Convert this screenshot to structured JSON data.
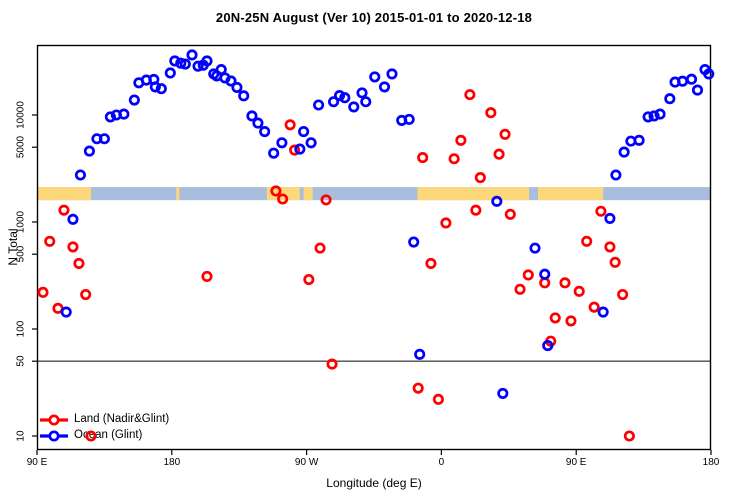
{
  "title": "20N-25N August (Ver 10)   2015-01-01 to 2020-12-18",
  "axes": {
    "xlabel": "Longitude (deg E)",
    "ylabel": "N Total",
    "x_ticks": [
      {
        "lon": 90,
        "label": "90 E"
      },
      {
        "lon": 180,
        "label": "180"
      },
      {
        "lon": 270,
        "label": "90 W"
      },
      {
        "lon": 360,
        "label": "0"
      },
      {
        "lon": 450,
        "label": "90 E"
      },
      {
        "lon": 540,
        "label": "180"
      }
    ],
    "y_ticks": [
      {
        "value": 10,
        "label": "10"
      },
      {
        "value": 50,
        "label": "50"
      },
      {
        "value": 100,
        "label": "100"
      },
      {
        "value": 500,
        "label": "500"
      },
      {
        "value": 1000,
        "label": "1000"
      },
      {
        "value": 5000,
        "label": "5000"
      },
      {
        "value": 10000,
        "label": "10000"
      }
    ]
  },
  "reference_line": {
    "value": 50,
    "color": "#4a4a4a"
  },
  "map_strip": {
    "ocean_color": "#a9bedd",
    "land_color": "#fdd87b",
    "value_range": [
      1600,
      2120
    ],
    "land_segments_lon": [
      [
        90,
        126
      ],
      [
        183,
        185
      ],
      [
        243.5,
        265.5
      ],
      [
        268,
        274
      ],
      [
        344,
        418.5
      ],
      [
        424.5,
        468
      ]
    ]
  },
  "chart_data": {
    "type": "scatter",
    "title": "20N-25N August (Ver 10)   2015-01-01 to 2020-12-18",
    "xlabel": "Longitude (deg E)",
    "ylabel": "N Total",
    "xlim": [
      90,
      540
    ],
    "ylim": [
      8,
      45000
    ],
    "y_scale": "log",
    "grid": false,
    "legend_position": "bottom-left",
    "series": [
      {
        "name": "Land (Nadir&Glint)",
        "color": "#ff0000",
        "points": [
          [
            259,
            8100
          ],
          [
            262,
            4700
          ],
          [
            379,
            15500
          ],
          [
            393,
            10500
          ],
          [
            373,
            5800
          ],
          [
            402.5,
            6600
          ],
          [
            347.5,
            4000
          ],
          [
            368.5,
            3900
          ],
          [
            398.5,
            4300
          ],
          [
            386,
            2600
          ],
          [
            249.5,
            1950
          ],
          [
            254,
            1640
          ],
          [
            283,
            1610
          ],
          [
            108,
            1290
          ],
          [
            98.5,
            660
          ],
          [
            114,
            585
          ],
          [
            118,
            410
          ],
          [
            94,
            220
          ],
          [
            122.5,
            210
          ],
          [
            104,
            156
          ],
          [
            203.5,
            310
          ],
          [
            279,
            570
          ],
          [
            271.5,
            290
          ],
          [
            383,
            1290
          ],
          [
            406,
            1180
          ],
          [
            363,
            980
          ],
          [
            353,
            410
          ],
          [
            466.5,
            1260
          ],
          [
            457,
            660
          ],
          [
            472.5,
            585
          ],
          [
            476,
            420
          ],
          [
            418,
            320
          ],
          [
            429,
            270
          ],
          [
            412.5,
            235
          ],
          [
            442.5,
            270
          ],
          [
            452,
            225
          ],
          [
            481,
            210
          ],
          [
            462,
            160
          ],
          [
            436,
            127
          ],
          [
            446.5,
            119
          ],
          [
            433,
            77
          ],
          [
            287,
            47
          ],
          [
            344.5,
            28
          ],
          [
            358,
            22
          ],
          [
            485.5,
            10
          ],
          [
            126,
            10
          ]
        ]
      },
      {
        "name": "Ocean (Glint)",
        "color": "#0000ff",
        "points": [
          [
            119,
            2750
          ],
          [
            125,
            4600
          ],
          [
            130,
            6000
          ],
          [
            135,
            6000
          ],
          [
            139,
            9600
          ],
          [
            143,
            10000
          ],
          [
            148,
            10200
          ],
          [
            155,
            13800
          ],
          [
            158,
            20000
          ],
          [
            163,
            21200
          ],
          [
            168,
            21500
          ],
          [
            169,
            18300
          ],
          [
            173,
            17600
          ],
          [
            179,
            24700
          ],
          [
            182,
            32000
          ],
          [
            186,
            30500
          ],
          [
            189,
            29900
          ],
          [
            193.5,
            36400
          ],
          [
            197.5,
            28600
          ],
          [
            201,
            29200
          ],
          [
            203.5,
            32000
          ],
          [
            208,
            24200
          ],
          [
            210,
            23200
          ],
          [
            213,
            26600
          ],
          [
            215.5,
            22200
          ],
          [
            219.5,
            20800
          ],
          [
            223.5,
            18100
          ],
          [
            228,
            15100
          ],
          [
            233.5,
            9800
          ],
          [
            237.5,
            8400
          ],
          [
            242,
            7000
          ],
          [
            248,
            4400
          ],
          [
            253.5,
            5500
          ],
          [
            265.5,
            4800
          ],
          [
            268,
            7000
          ],
          [
            273,
            5500
          ],
          [
            278,
            12400
          ],
          [
            288,
            13300
          ],
          [
            292,
            15200
          ],
          [
            295.5,
            14500
          ],
          [
            301.5,
            11900
          ],
          [
            307,
            16100
          ],
          [
            309.5,
            13300
          ],
          [
            315.5,
            22700
          ],
          [
            322,
            18300
          ],
          [
            327,
            24200
          ],
          [
            333.5,
            8900
          ],
          [
            338.5,
            9100
          ],
          [
            476.5,
            2750
          ],
          [
            482,
            4500
          ],
          [
            486.5,
            5700
          ],
          [
            492,
            5800
          ],
          [
            498,
            9600
          ],
          [
            502,
            9800
          ],
          [
            506,
            10200
          ],
          [
            512.5,
            14200
          ],
          [
            516,
            20300
          ],
          [
            521,
            20700
          ],
          [
            527,
            21600
          ],
          [
            531,
            17100
          ],
          [
            536,
            26600
          ],
          [
            538.5,
            24200
          ],
          [
            114,
            1060
          ],
          [
            109.5,
            144
          ],
          [
            397,
            1560
          ],
          [
            341.5,
            650
          ],
          [
            422.5,
            570
          ],
          [
            472.5,
            1080
          ],
          [
            429,
            325
          ],
          [
            468,
            144
          ],
          [
            431,
            70
          ],
          [
            345.5,
            58
          ],
          [
            401,
            25
          ]
        ]
      }
    ]
  }
}
